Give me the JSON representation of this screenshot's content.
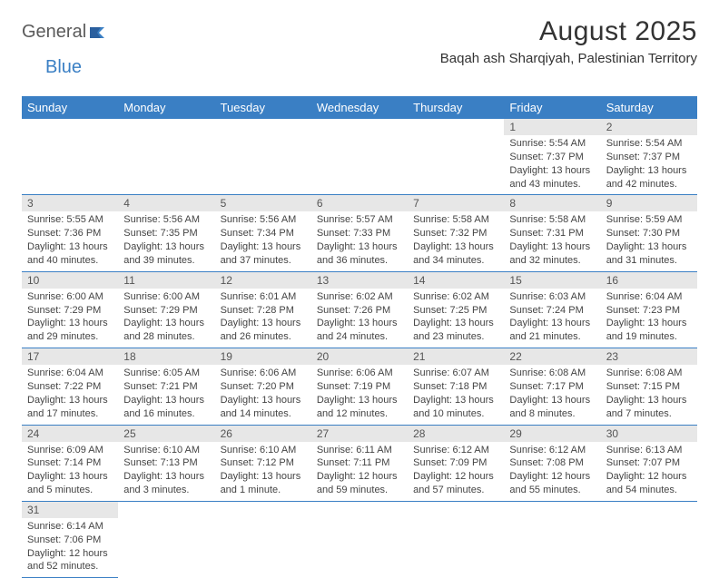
{
  "logo": {
    "text1": "General",
    "text2": "Blue"
  },
  "title": "August 2025",
  "location": "Baqah ash Sharqiyah, Palestinian Territory",
  "colors": {
    "header_bg": "#3a7fc4",
    "header_fg": "#ffffff",
    "daynum_bg": "#e7e7e7",
    "row_border": "#3a7fc4",
    "logo_blue": "#3a7fc4",
    "logo_gray": "#5a5a5a",
    "page_bg": "#ffffff",
    "text": "#333333"
  },
  "weekdays": [
    "Sunday",
    "Monday",
    "Tuesday",
    "Wednesday",
    "Thursday",
    "Friday",
    "Saturday"
  ],
  "weeks": [
    [
      null,
      null,
      null,
      null,
      null,
      {
        "n": "1",
        "sr": "5:54 AM",
        "ss": "7:37 PM",
        "dl": "13 hours and 43 minutes."
      },
      {
        "n": "2",
        "sr": "5:54 AM",
        "ss": "7:37 PM",
        "dl": "13 hours and 42 minutes."
      }
    ],
    [
      {
        "n": "3",
        "sr": "5:55 AM",
        "ss": "7:36 PM",
        "dl": "13 hours and 40 minutes."
      },
      {
        "n": "4",
        "sr": "5:56 AM",
        "ss": "7:35 PM",
        "dl": "13 hours and 39 minutes."
      },
      {
        "n": "5",
        "sr": "5:56 AM",
        "ss": "7:34 PM",
        "dl": "13 hours and 37 minutes."
      },
      {
        "n": "6",
        "sr": "5:57 AM",
        "ss": "7:33 PM",
        "dl": "13 hours and 36 minutes."
      },
      {
        "n": "7",
        "sr": "5:58 AM",
        "ss": "7:32 PM",
        "dl": "13 hours and 34 minutes."
      },
      {
        "n": "8",
        "sr": "5:58 AM",
        "ss": "7:31 PM",
        "dl": "13 hours and 32 minutes."
      },
      {
        "n": "9",
        "sr": "5:59 AM",
        "ss": "7:30 PM",
        "dl": "13 hours and 31 minutes."
      }
    ],
    [
      {
        "n": "10",
        "sr": "6:00 AM",
        "ss": "7:29 PM",
        "dl": "13 hours and 29 minutes."
      },
      {
        "n": "11",
        "sr": "6:00 AM",
        "ss": "7:29 PM",
        "dl": "13 hours and 28 minutes."
      },
      {
        "n": "12",
        "sr": "6:01 AM",
        "ss": "7:28 PM",
        "dl": "13 hours and 26 minutes."
      },
      {
        "n": "13",
        "sr": "6:02 AM",
        "ss": "7:26 PM",
        "dl": "13 hours and 24 minutes."
      },
      {
        "n": "14",
        "sr": "6:02 AM",
        "ss": "7:25 PM",
        "dl": "13 hours and 23 minutes."
      },
      {
        "n": "15",
        "sr": "6:03 AM",
        "ss": "7:24 PM",
        "dl": "13 hours and 21 minutes."
      },
      {
        "n": "16",
        "sr": "6:04 AM",
        "ss": "7:23 PM",
        "dl": "13 hours and 19 minutes."
      }
    ],
    [
      {
        "n": "17",
        "sr": "6:04 AM",
        "ss": "7:22 PM",
        "dl": "13 hours and 17 minutes."
      },
      {
        "n": "18",
        "sr": "6:05 AM",
        "ss": "7:21 PM",
        "dl": "13 hours and 16 minutes."
      },
      {
        "n": "19",
        "sr": "6:06 AM",
        "ss": "7:20 PM",
        "dl": "13 hours and 14 minutes."
      },
      {
        "n": "20",
        "sr": "6:06 AM",
        "ss": "7:19 PM",
        "dl": "13 hours and 12 minutes."
      },
      {
        "n": "21",
        "sr": "6:07 AM",
        "ss": "7:18 PM",
        "dl": "13 hours and 10 minutes."
      },
      {
        "n": "22",
        "sr": "6:08 AM",
        "ss": "7:17 PM",
        "dl": "13 hours and 8 minutes."
      },
      {
        "n": "23",
        "sr": "6:08 AM",
        "ss": "7:15 PM",
        "dl": "13 hours and 7 minutes."
      }
    ],
    [
      {
        "n": "24",
        "sr": "6:09 AM",
        "ss": "7:14 PM",
        "dl": "13 hours and 5 minutes."
      },
      {
        "n": "25",
        "sr": "6:10 AM",
        "ss": "7:13 PM",
        "dl": "13 hours and 3 minutes."
      },
      {
        "n": "26",
        "sr": "6:10 AM",
        "ss": "7:12 PM",
        "dl": "13 hours and 1 minute."
      },
      {
        "n": "27",
        "sr": "6:11 AM",
        "ss": "7:11 PM",
        "dl": "12 hours and 59 minutes."
      },
      {
        "n": "28",
        "sr": "6:12 AM",
        "ss": "7:09 PM",
        "dl": "12 hours and 57 minutes."
      },
      {
        "n": "29",
        "sr": "6:12 AM",
        "ss": "7:08 PM",
        "dl": "12 hours and 55 minutes."
      },
      {
        "n": "30",
        "sr": "6:13 AM",
        "ss": "7:07 PM",
        "dl": "12 hours and 54 minutes."
      }
    ],
    [
      {
        "n": "31",
        "sr": "6:14 AM",
        "ss": "7:06 PM",
        "dl": "12 hours and 52 minutes."
      },
      null,
      null,
      null,
      null,
      null,
      null
    ]
  ],
  "labels": {
    "sunrise": "Sunrise:",
    "sunset": "Sunset:",
    "daylight": "Daylight:"
  }
}
